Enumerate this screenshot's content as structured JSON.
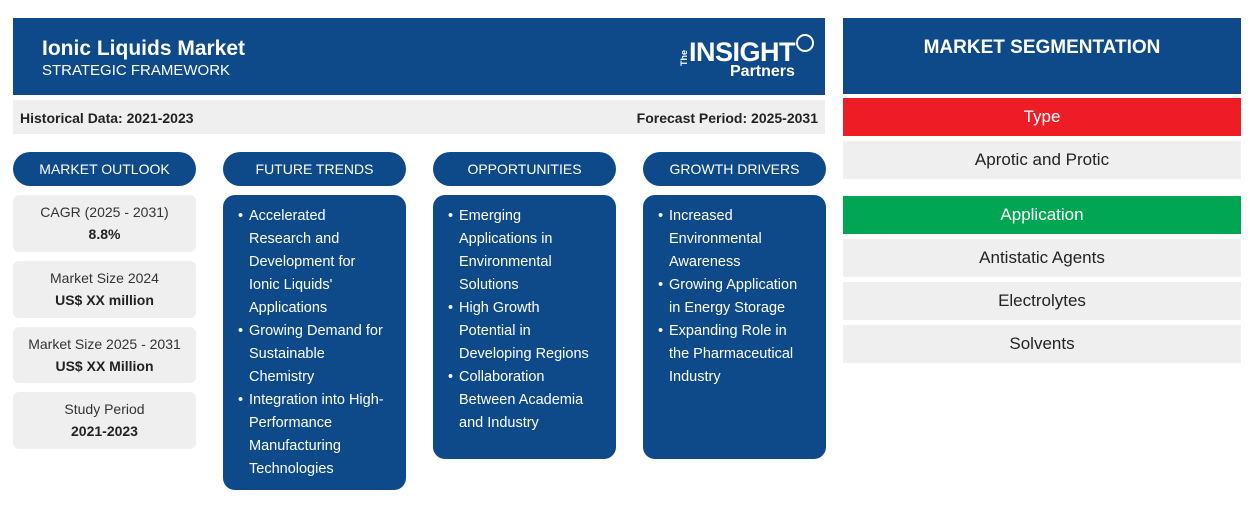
{
  "header": {
    "title": "Ionic Liquids Market",
    "subtitle": "STRATEGIC FRAMEWORK",
    "logo": {
      "the": "The",
      "insight": "INSIGHT",
      "partners": "Partners"
    }
  },
  "periods": {
    "historical": "Historical Data: 2021-2023",
    "forecast": "Forecast Period: 2025-2031"
  },
  "market_outlook": {
    "heading": "MARKET OUTLOOK",
    "stats": [
      {
        "label": "CAGR (2025 - 2031)",
        "value": "8.8%"
      },
      {
        "label": "Market Size 2024",
        "value": "US$ XX million"
      },
      {
        "label": "Market Size 2025 - 2031",
        "value": "US$ XX Million"
      },
      {
        "label": "Study Period",
        "value": "2021-2023"
      }
    ]
  },
  "future_trends": {
    "heading": "FUTURE TRENDS",
    "items": [
      [
        "Accelerated",
        "Research and",
        "Development for",
        "Ionic Liquids'",
        "Applications"
      ],
      [
        "Growing Demand for",
        "Sustainable",
        "Chemistry"
      ],
      [
        "Integration into High-",
        "Performance",
        "Manufacturing",
        "Technologies"
      ]
    ]
  },
  "opportunities": {
    "heading": "OPPORTUNITIES",
    "items": [
      [
        "Emerging",
        "Applications in",
        "Environmental",
        "Solutions"
      ],
      [
        "High Growth",
        "Potential in",
        "Developing Regions"
      ],
      [
        "Collaboration",
        "Between Academia",
        "and Industry"
      ]
    ]
  },
  "growth_drivers": {
    "heading": "GROWTH DRIVERS",
    "items": [
      [
        "Increased",
        "Environmental",
        "Awareness"
      ],
      [
        "Growing Application",
        "in Energy Storage"
      ],
      [
        "Expanding Role in",
        "the Pharmaceutical",
        "Industry"
      ]
    ]
  },
  "segmentation": {
    "heading": "MARKET SEGMENTATION",
    "type": {
      "label": "Type",
      "color": "#ee1c25",
      "items": [
        "Aprotic and Protic"
      ]
    },
    "application": {
      "label": "Application",
      "color": "#00a651",
      "items": [
        "Antistatic Agents",
        "Electrolytes",
        "Solvents"
      ]
    }
  }
}
